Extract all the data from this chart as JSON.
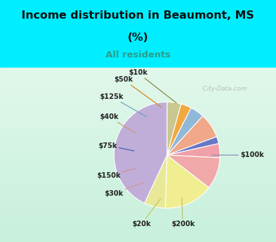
{
  "title_line1": "Income distribution in Beaumont, MS",
  "title_line2": "(%)",
  "subtitle": "All residents",
  "title_color": "#111111",
  "subtitle_color": "#2a9d8a",
  "background_top": "#00eeff",
  "background_chart_top": "#c8e8d8",
  "background_chart_bottom": "#e0f0e8",
  "watermark": "  City-Data.com",
  "ordered_labels": [
    "$10k",
    "$50k",
    "$125k",
    "$40k",
    "$75k",
    "$150k",
    "$30k",
    "$20k",
    "$200k",
    "$100k"
  ],
  "ordered_values": [
    4,
    3,
    4,
    7,
    2,
    4,
    9,
    14,
    6,
    40
  ],
  "ordered_colors": [
    "#c8c890",
    "#f0a840",
    "#90b8d8",
    "#f0a888",
    "#6878c8",
    "#f0a0a8",
    "#f0a8a8",
    "#f0ee90",
    "#e8e898",
    "#c0aed8"
  ],
  "label_lines": {
    "$10k": {
      "lc": "#888840"
    },
    "$50k": {
      "lc": "#d08820"
    },
    "$125k": {
      "lc": "#70a0c0"
    },
    "$40k": {
      "lc": "#d09878"
    },
    "$75k": {
      "lc": "#4860b0"
    },
    "$150k": {
      "lc": "#d09098"
    },
    "$30k": {
      "lc": "#d09898"
    },
    "$20k": {
      "lc": "#c8c860"
    },
    "$200k": {
      "lc": "#c0c070"
    },
    "$100k": {
      "lc": "#9090b8"
    }
  }
}
